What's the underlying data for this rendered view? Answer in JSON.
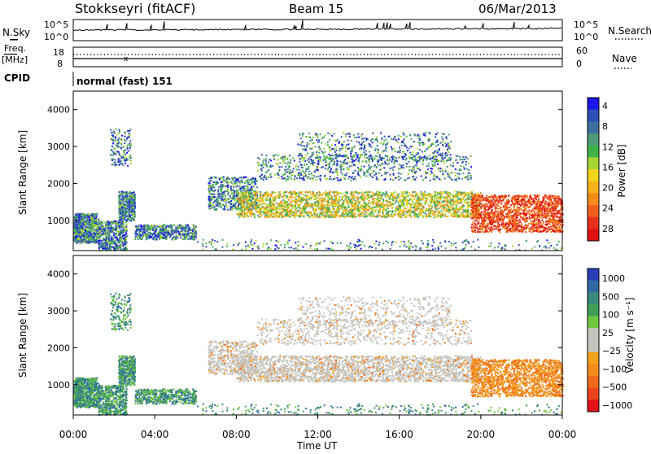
{
  "header": {
    "station": "Stokkseyri (fitACF)",
    "beam": "Beam 15",
    "date": "06/Mar/2013"
  },
  "strip_panels": {
    "nsky": {
      "label": "N.Sky",
      "ticks": [
        "10^5",
        "10^0"
      ],
      "right_label": "N.Search",
      "right_ticks": [
        "10^5",
        "10^0"
      ]
    },
    "freq": {
      "label_top": "Freq.",
      "label_unit": "[MHz]",
      "ticks": [
        "18",
        "8"
      ],
      "right_label": "Nave",
      "right_ticks": [
        "60",
        "0"
      ]
    },
    "cpid": {
      "label": "CPID",
      "mode_text": "normal (fast) 151"
    }
  },
  "chart_data": [
    {
      "type": "heatmap",
      "panel": "power",
      "ylabel": "Slant Range [km]",
      "xlabel": "",
      "xlim_hours": [
        0,
        24
      ],
      "ylim_km": [
        180,
        4500
      ],
      "yticks": [
        1000,
        2000,
        3000,
        4000
      ],
      "colorbar": {
        "label": "Power [dB]",
        "ticks": [
          "4",
          "8",
          "12",
          "16",
          "20",
          "24",
          "28"
        ],
        "colors": [
          "#1c16e8",
          "#2d4fb8",
          "#3e6fa0",
          "#4f9a78",
          "#3fb34a",
          "#a6d432",
          "#f2d51a",
          "#f7b219",
          "#f58a1a",
          "#f0601c",
          "#e8311c",
          "#e00f12"
        ]
      }
    },
    {
      "type": "heatmap",
      "panel": "velocity",
      "ylabel": "Slant Range [km]",
      "xlabel": "Time UT",
      "xlim_hours": [
        0,
        24
      ],
      "ylim_km": [
        180,
        4500
      ],
      "yticks": [
        1000,
        2000,
        3000,
        4000
      ],
      "xticks": [
        "00:00",
        "04:00",
        "08:00",
        "12:00",
        "16:00",
        "20:00",
        "00:00"
      ],
      "colorbar": {
        "label": "Velocity [m s⁻¹]",
        "ticks": [
          "1000",
          "500",
          "100",
          "25",
          "−25",
          "−100",
          "−500",
          "−1000"
        ],
        "colors": [
          "#2a3fb6",
          "#2f6aa2",
          "#3a8a7d",
          "#3f9e56",
          "#6fc73d",
          "#c5c5c0",
          "#c5c5c0",
          "#f2a21a",
          "#f38a1c",
          "#f06a1c",
          "#ec451c",
          "#e3121a"
        ]
      }
    }
  ]
}
